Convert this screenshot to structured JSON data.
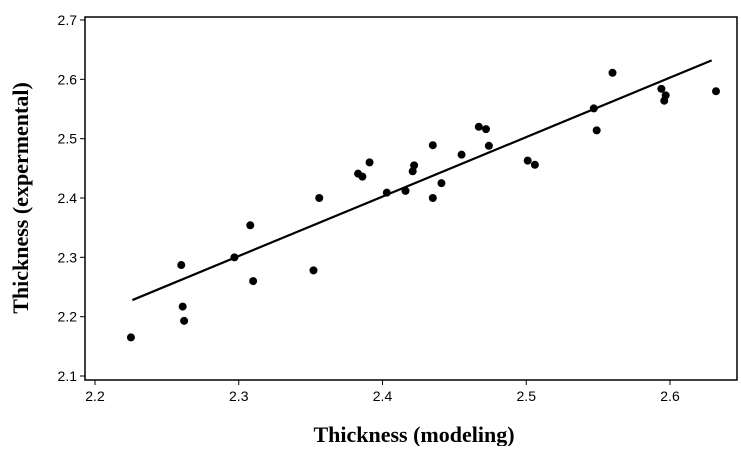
{
  "chart_data": {
    "type": "scatter",
    "title": "",
    "xlabel": "Thickness (modeling)",
    "ylabel": "Thickness (expermental)",
    "xlim": [
      2.2,
      2.67
    ],
    "ylim": [
      2.1,
      2.7
    ],
    "x_ticks": [
      2.2,
      2.3,
      2.4,
      2.5,
      2.6
    ],
    "y_ticks": [
      2.1,
      2.2,
      2.3,
      2.4,
      2.5,
      2.6,
      2.7
    ],
    "x_tick_labels": [
      "2.2",
      "2.3",
      "2.4",
      "2.5",
      "2.6"
    ],
    "y_tick_labels": [
      "2.1",
      "2.2",
      "2.3",
      "2.4",
      "2.5",
      "2.6",
      "2.7"
    ],
    "grid": false,
    "legend": "none",
    "marker_color": "#000000",
    "series": [
      {
        "points": [
          {
            "x": 2.225,
            "y": 2.165
          },
          {
            "x": 2.26,
            "y": 2.287
          },
          {
            "x": 2.261,
            "y": 2.217
          },
          {
            "x": 2.262,
            "y": 2.193
          },
          {
            "x": 2.297,
            "y": 2.3
          },
          {
            "x": 2.308,
            "y": 2.354
          },
          {
            "x": 2.31,
            "y": 2.26
          },
          {
            "x": 2.352,
            "y": 2.278
          },
          {
            "x": 2.356,
            "y": 2.4
          },
          {
            "x": 2.383,
            "y": 2.441
          },
          {
            "x": 2.386,
            "y": 2.436
          },
          {
            "x": 2.391,
            "y": 2.46
          },
          {
            "x": 2.403,
            "y": 2.409
          },
          {
            "x": 2.416,
            "y": 2.412
          },
          {
            "x": 2.421,
            "y": 2.445
          },
          {
            "x": 2.422,
            "y": 2.455
          },
          {
            "x": 2.435,
            "y": 2.489
          },
          {
            "x": 2.435,
            "y": 2.4
          },
          {
            "x": 2.441,
            "y": 2.425
          },
          {
            "x": 2.455,
            "y": 2.473
          },
          {
            "x": 2.467,
            "y": 2.52
          },
          {
            "x": 2.472,
            "y": 2.516
          },
          {
            "x": 2.474,
            "y": 2.488
          },
          {
            "x": 2.501,
            "y": 2.463
          },
          {
            "x": 2.506,
            "y": 2.456
          },
          {
            "x": 2.547,
            "y": 2.551
          },
          {
            "x": 2.549,
            "y": 2.514
          },
          {
            "x": 2.56,
            "y": 2.611
          },
          {
            "x": 2.594,
            "y": 2.584
          },
          {
            "x": 2.596,
            "y": 2.564
          },
          {
            "x": 2.597,
            "y": 2.573
          },
          {
            "x": 2.632,
            "y": 2.58
          }
        ]
      }
    ],
    "fit_line": {
      "color": "#000000",
      "points": [
        {
          "x": 2.226,
          "y": 2.228
        },
        {
          "x": 2.629,
          "y": 2.632
        }
      ]
    }
  }
}
